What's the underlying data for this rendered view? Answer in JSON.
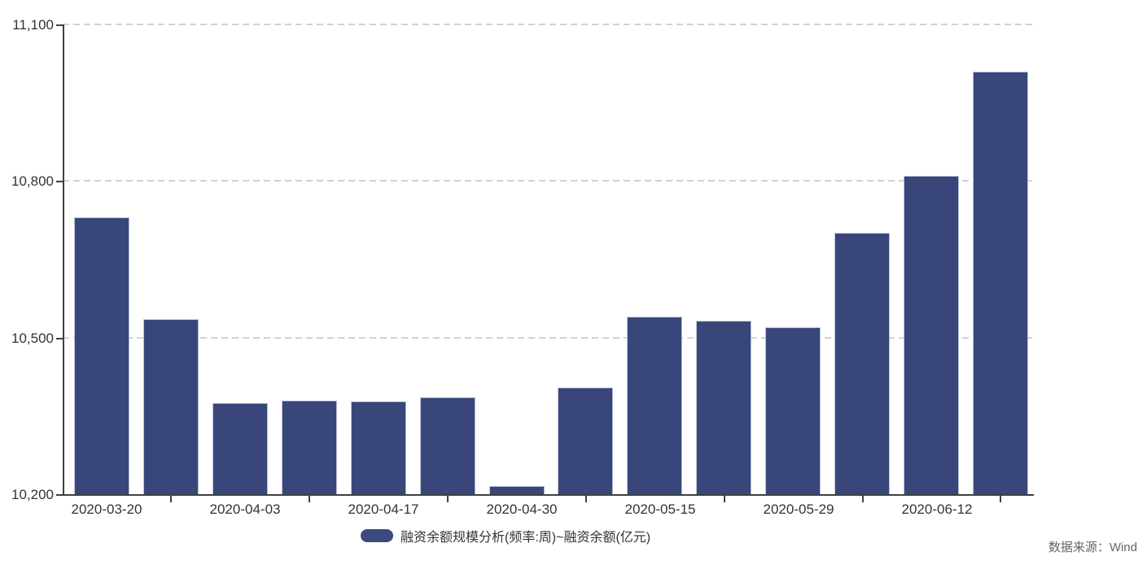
{
  "chart_data": {
    "type": "bar",
    "legend_label": "融资余额规模分析(频率:周)~融资余额(亿元)",
    "source_note": "数据来源：Wind",
    "x_tick_labels": [
      "2020-03-20",
      "2020-04-03",
      "2020-04-17",
      "2020-04-30",
      "2020-05-15",
      "2020-05-29",
      "2020-06-12"
    ],
    "bars_per_tick_label": 2,
    "values": [
      10730,
      10535,
      10375,
      10380,
      10378,
      10385,
      10215,
      10405,
      10540,
      10533,
      10520,
      10700,
      10810,
      11010
    ],
    "ylim": [
      10200,
      11100
    ],
    "y_ticks": [
      10200,
      10500,
      10800,
      11100
    ],
    "y_tick_labels": [
      "10,200",
      "10,500",
      "10,800",
      "11,100"
    ],
    "grid": "horizontal-dashed",
    "legend_position": "bottom-center",
    "colors": {
      "bar_fill": "#39467A",
      "bar_border": "#b9c1db",
      "axis": "#404040",
      "gridline": "#d2d2d2",
      "tick_text": "#333333",
      "source_text": "#666666"
    }
  }
}
